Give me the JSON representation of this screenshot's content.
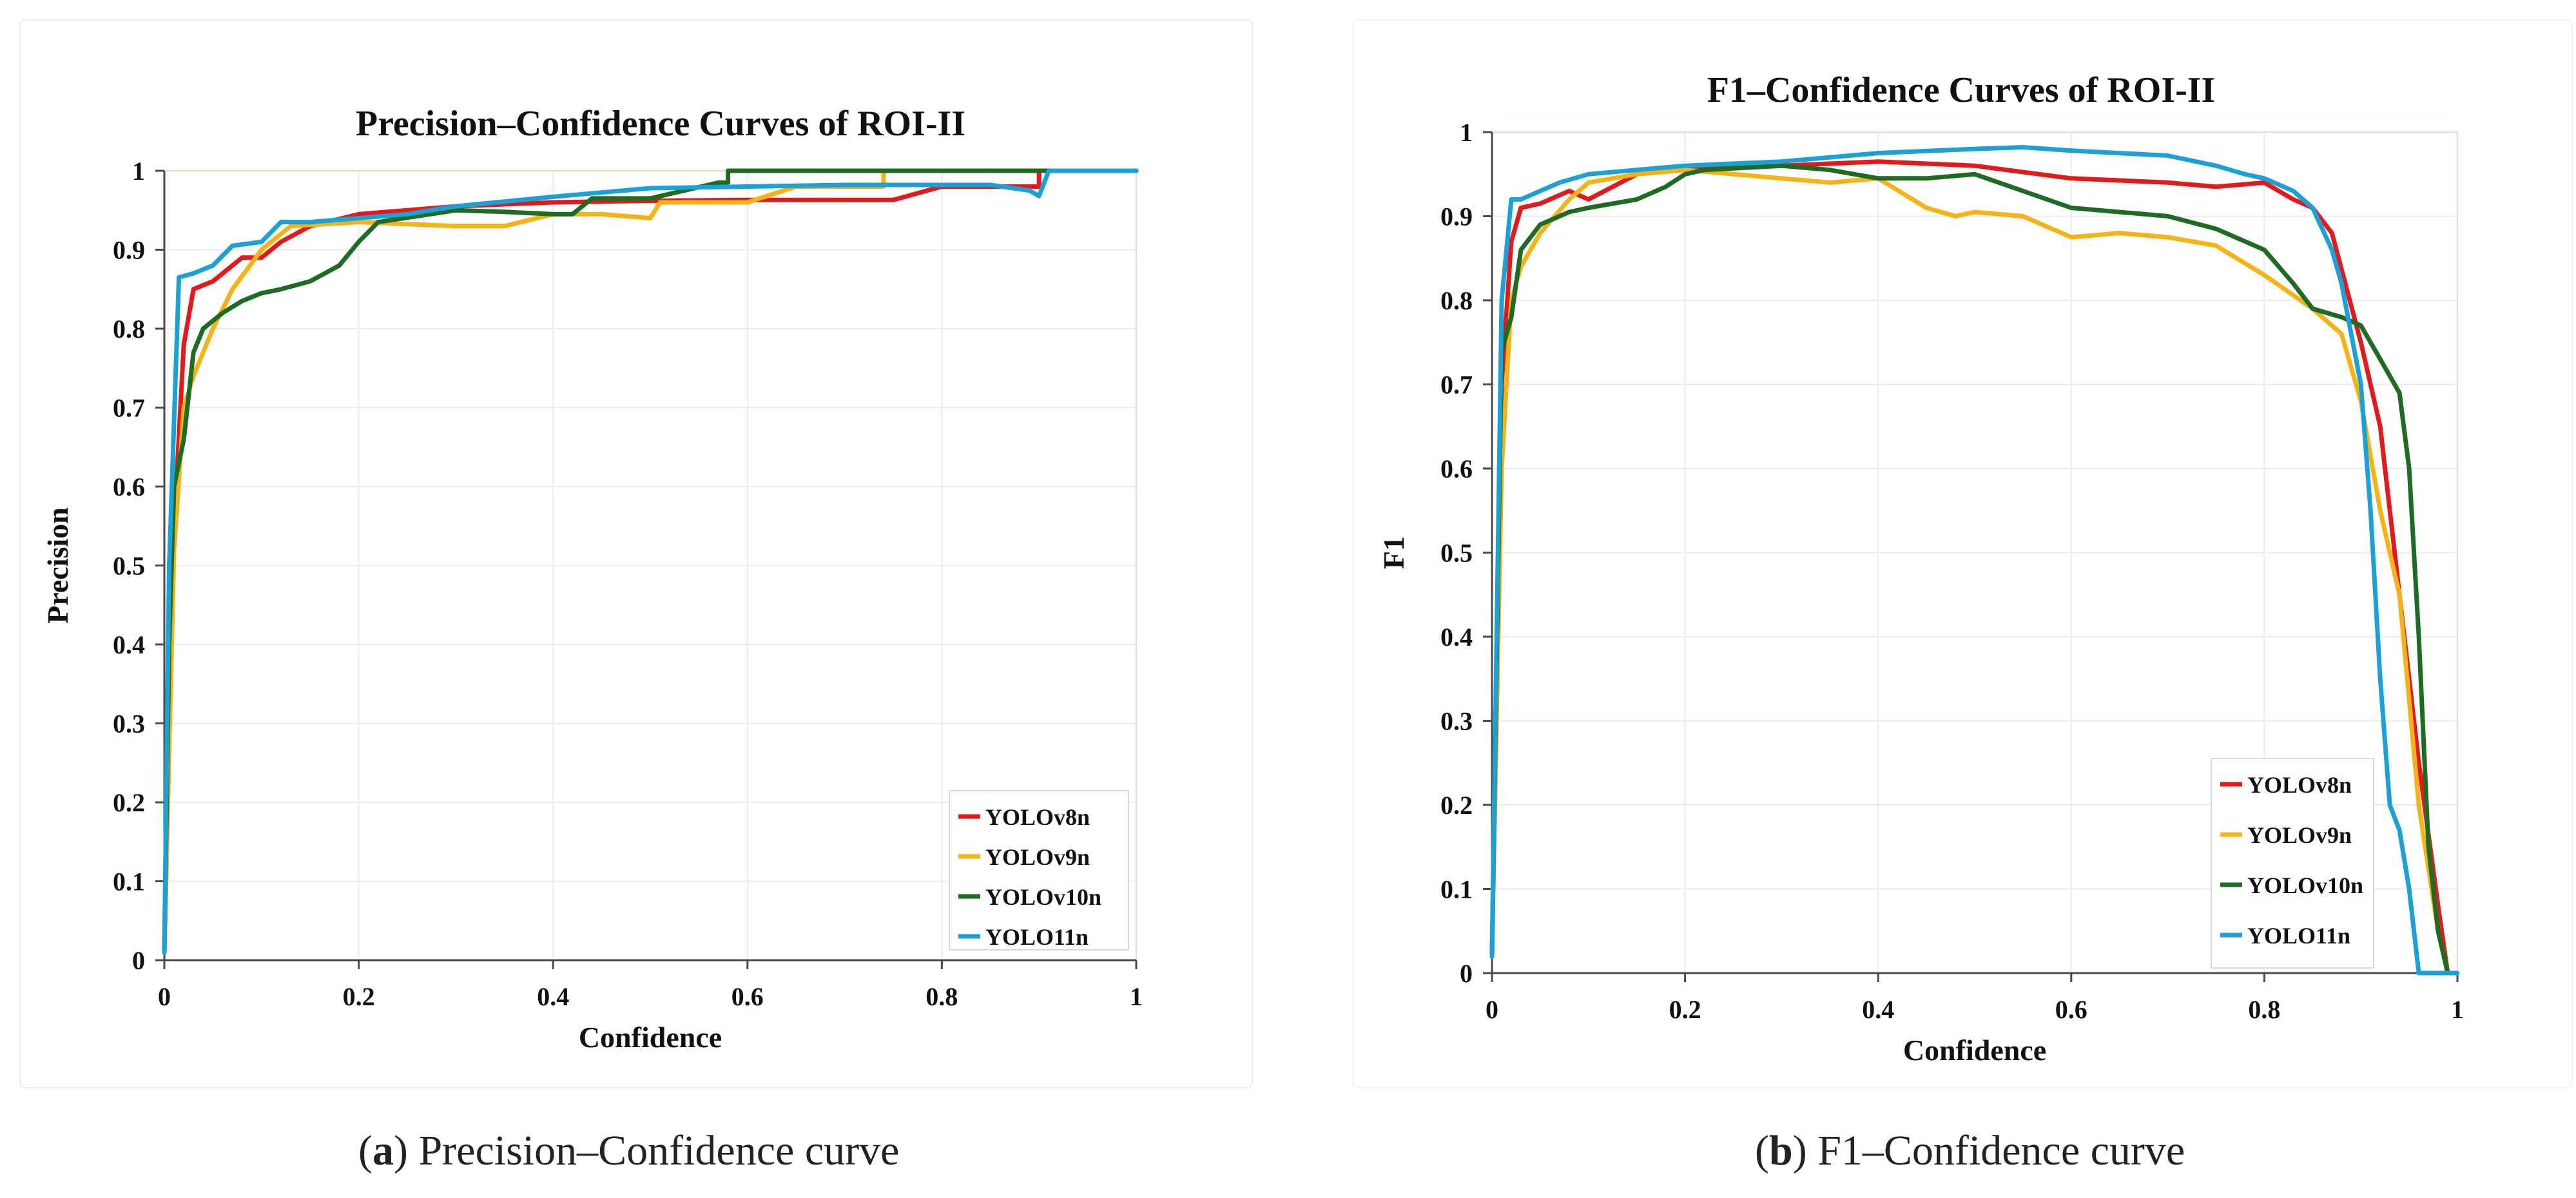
{
  "captions": [
    {
      "label": "a",
      "text": "Precision–Confidence curve"
    },
    {
      "label": "b",
      "text": "F1–Confidence curve"
    }
  ],
  "chart_data": [
    {
      "type": "line",
      "title": "Precision–Confidence Curves of ROI-II",
      "xlabel": "Confidence",
      "ylabel": "Precision",
      "xlim": [
        0,
        1
      ],
      "ylim": [
        0,
        1
      ],
      "xticks": [
        0,
        0.2,
        0.4,
        0.6,
        0.8,
        1
      ],
      "xtick_labels": [
        "0",
        "0.2",
        "0.4",
        "0.6",
        "0.8",
        "1"
      ],
      "yticks": [
        0,
        0.1,
        0.2,
        0.3,
        0.4,
        0.5,
        0.6,
        0.7,
        0.8,
        0.9,
        1
      ],
      "ytick_labels": [
        "0",
        "0.1",
        "0.2",
        "0.3",
        "0.4",
        "0.5",
        "0.6",
        "0.7",
        "0.8",
        "0.9",
        "1"
      ],
      "grid": true,
      "legend": "bottom-right",
      "series": [
        {
          "name": "YOLOv8n",
          "color": "#e31a1c",
          "x": [
            0,
            0.01,
            0.02,
            0.03,
            0.05,
            0.07,
            0.08,
            0.1,
            0.12,
            0.15,
            0.2,
            0.25,
            0.3,
            0.4,
            0.5,
            0.6,
            0.7,
            0.75,
            0.8,
            0.88,
            0.9,
            0.9,
            1
          ],
          "y": [
            0.01,
            0.55,
            0.78,
            0.85,
            0.86,
            0.88,
            0.89,
            0.89,
            0.91,
            0.93,
            0.945,
            0.95,
            0.955,
            0.96,
            0.962,
            0.963,
            0.963,
            0.963,
            0.98,
            0.98,
            0.98,
            1,
            1
          ]
        },
        {
          "name": "YOLOv9n",
          "color": "#f5b317",
          "x": [
            0,
            0.01,
            0.02,
            0.03,
            0.05,
            0.07,
            0.1,
            0.13,
            0.2,
            0.3,
            0.35,
            0.4,
            0.45,
            0.5,
            0.51,
            0.6,
            0.65,
            0.72,
            0.74,
            0.74,
            1
          ],
          "y": [
            0.01,
            0.52,
            0.7,
            0.74,
            0.8,
            0.85,
            0.9,
            0.93,
            0.935,
            0.93,
            0.93,
            0.945,
            0.945,
            0.94,
            0.96,
            0.96,
            0.98,
            0.98,
            0.98,
            1,
            1
          ]
        },
        {
          "name": "YOLOv10n",
          "color": "#1e6b23",
          "x": [
            0,
            0.005,
            0.01,
            0.02,
            0.03,
            0.04,
            0.06,
            0.08,
            0.1,
            0.12,
            0.15,
            0.18,
            0.2,
            0.22,
            0.3,
            0.35,
            0.4,
            0.42,
            0.44,
            0.5,
            0.57,
            0.58,
            0.58,
            1
          ],
          "y": [
            0.01,
            0.4,
            0.6,
            0.66,
            0.77,
            0.8,
            0.82,
            0.835,
            0.845,
            0.85,
            0.86,
            0.88,
            0.91,
            0.935,
            0.95,
            0.948,
            0.945,
            0.945,
            0.965,
            0.965,
            0.985,
            0.985,
            1,
            1
          ]
        },
        {
          "name": "YOLO11n",
          "color": "#1ba1d6",
          "x": [
            0,
            0.005,
            0.015,
            0.03,
            0.05,
            0.07,
            0.1,
            0.12,
            0.15,
            0.2,
            0.25,
            0.3,
            0.4,
            0.5,
            0.6,
            0.7,
            0.8,
            0.85,
            0.89,
            0.9,
            0.91,
            0.92,
            1
          ],
          "y": [
            0.01,
            0.5,
            0.865,
            0.87,
            0.88,
            0.905,
            0.91,
            0.935,
            0.935,
            0.94,
            0.945,
            0.955,
            0.967,
            0.978,
            0.98,
            0.982,
            0.982,
            0.982,
            0.975,
            0.968,
            1,
            1,
            1
          ]
        }
      ]
    },
    {
      "type": "line",
      "title": "F1–Confidence Curves of ROI-II",
      "xlabel": "Confidence",
      "ylabel": "F1",
      "xlim": [
        0,
        1
      ],
      "ylim": [
        0,
        1
      ],
      "xticks": [
        0,
        0.2,
        0.4,
        0.6,
        0.8,
        1
      ],
      "xtick_labels": [
        "0",
        "0.2",
        "0.4",
        "0.6",
        "0.8",
        "1"
      ],
      "yticks": [
        0,
        0.1,
        0.2,
        0.3,
        0.4,
        0.5,
        0.6,
        0.7,
        0.8,
        0.9,
        1
      ],
      "ytick_labels": [
        "0",
        "0.1",
        "0.2",
        "0.3",
        "0.4",
        "0.5",
        "0.6",
        "0.7",
        "0.8",
        "0.9",
        "1"
      ],
      "grid": true,
      "legend": "bottom-right",
      "series": [
        {
          "name": "YOLOv8n",
          "color": "#e31a1c",
          "x": [
            0,
            0.01,
            0.02,
            0.03,
            0.05,
            0.08,
            0.1,
            0.15,
            0.2,
            0.3,
            0.4,
            0.5,
            0.6,
            0.7,
            0.75,
            0.8,
            0.83,
            0.85,
            0.87,
            0.9,
            0.92,
            0.94,
            0.96,
            0.98,
            0.99
          ],
          "y": [
            0.02,
            0.7,
            0.87,
            0.91,
            0.915,
            0.93,
            0.92,
            0.95,
            0.955,
            0.96,
            0.965,
            0.96,
            0.945,
            0.94,
            0.935,
            0.94,
            0.92,
            0.91,
            0.88,
            0.75,
            0.65,
            0.45,
            0.25,
            0.08,
            0
          ]
        },
        {
          "name": "YOLOv9n",
          "color": "#f5b317",
          "x": [
            0,
            0.01,
            0.02,
            0.03,
            0.05,
            0.08,
            0.1,
            0.15,
            0.2,
            0.3,
            0.35,
            0.4,
            0.45,
            0.48,
            0.5,
            0.55,
            0.6,
            0.65,
            0.7,
            0.75,
            0.8,
            0.85,
            0.88,
            0.9,
            0.92,
            0.94,
            0.96,
            0.98,
            0.99
          ],
          "y": [
            0.02,
            0.6,
            0.8,
            0.84,
            0.88,
            0.92,
            0.94,
            0.95,
            0.955,
            0.945,
            0.94,
            0.945,
            0.91,
            0.9,
            0.905,
            0.9,
            0.875,
            0.88,
            0.875,
            0.865,
            0.83,
            0.79,
            0.76,
            0.68,
            0.55,
            0.45,
            0.2,
            0.05,
            0
          ]
        },
        {
          "name": "YOLOv10n",
          "color": "#1e6b23",
          "x": [
            0,
            0.01,
            0.02,
            0.03,
            0.05,
            0.08,
            0.1,
            0.15,
            0.18,
            0.2,
            0.22,
            0.3,
            0.35,
            0.4,
            0.45,
            0.5,
            0.55,
            0.6,
            0.7,
            0.75,
            0.8,
            0.83,
            0.85,
            0.88,
            0.9,
            0.92,
            0.94,
            0.95,
            0.96,
            0.97,
            0.98,
            0.99
          ],
          "y": [
            0.02,
            0.74,
            0.78,
            0.86,
            0.89,
            0.905,
            0.91,
            0.92,
            0.935,
            0.95,
            0.955,
            0.96,
            0.955,
            0.945,
            0.945,
            0.95,
            0.93,
            0.91,
            0.9,
            0.885,
            0.86,
            0.82,
            0.79,
            0.78,
            0.77,
            0.73,
            0.69,
            0.6,
            0.4,
            0.15,
            0.05,
            0
          ]
        },
        {
          "name": "YOLO11n",
          "color": "#1ba1d6",
          "x": [
            0,
            0.01,
            0.02,
            0.03,
            0.05,
            0.07,
            0.1,
            0.15,
            0.2,
            0.3,
            0.4,
            0.5,
            0.55,
            0.6,
            0.7,
            0.75,
            0.78,
            0.8,
            0.83,
            0.85,
            0.87,
            0.88,
            0.9,
            0.91,
            0.92,
            0.93,
            0.94,
            0.95,
            0.96,
            1
          ],
          "y": [
            0.02,
            0.8,
            0.92,
            0.92,
            0.93,
            0.94,
            0.95,
            0.955,
            0.96,
            0.965,
            0.975,
            0.98,
            0.982,
            0.978,
            0.972,
            0.96,
            0.95,
            0.945,
            0.93,
            0.91,
            0.86,
            0.82,
            0.7,
            0.55,
            0.35,
            0.2,
            0.17,
            0.1,
            0,
            0
          ]
        }
      ]
    }
  ]
}
